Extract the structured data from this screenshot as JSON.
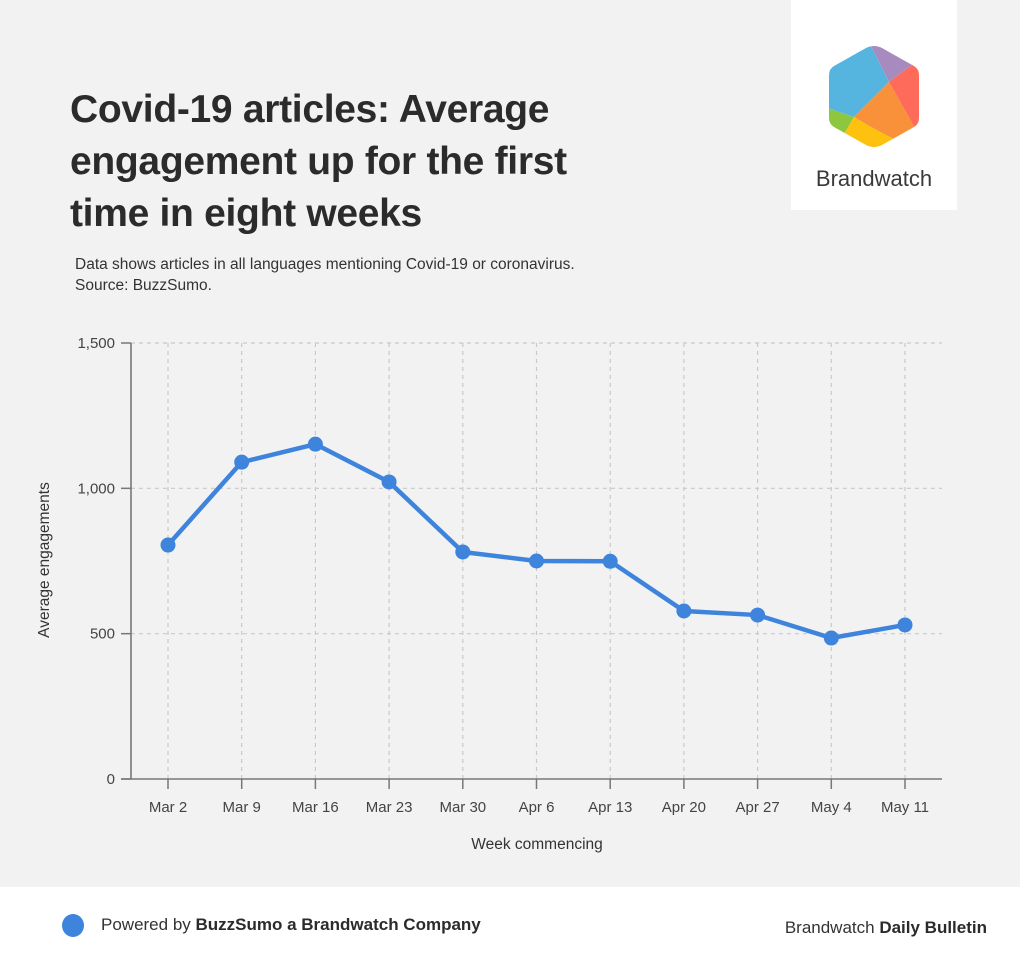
{
  "header": {
    "title": "Covid-19 articles: Average engagement up for the first time in eight weeks",
    "subtitle_line1": "Data shows articles in all languages mentioning Covid-19 or coronavirus.",
    "subtitle_line2": "Source: BuzzSumo."
  },
  "logo": {
    "name": "Brandwatch",
    "icon": "brandwatch-hexagon-logo",
    "colors": [
      "#55b5df",
      "#a78bbf",
      "#fe6b5a",
      "#f8913a",
      "#fec20e",
      "#8dc63f"
    ]
  },
  "footer": {
    "powered_prefix": "Powered by ",
    "powered_brand": "BuzzSumo a Brandwatch Company",
    "right_prefix": "Brandwatch ",
    "right_brand": "Daily Bulletin",
    "dot_color": "#3f84dc"
  },
  "chart_data": {
    "type": "line",
    "title": "Covid-19 articles: Average engagement up for the first time in eight weeks",
    "xlabel": "Week commencing",
    "ylabel": "Average engagements",
    "categories": [
      "Mar 2",
      "Mar 9",
      "Mar 16",
      "Mar 23",
      "Mar 30",
      "Apr 6",
      "Apr 13",
      "Apr 20",
      "Apr 27",
      "May 4",
      "May 11"
    ],
    "series": [
      {
        "name": "Average engagements",
        "color": "#3f84dc",
        "values": [
          805,
          1090,
          1152,
          1022,
          781,
          750,
          749,
          578,
          564,
          485,
          530
        ]
      }
    ],
    "ylim": [
      0,
      1500
    ],
    "yticks": [
      0,
      500,
      1000,
      1500
    ],
    "ytick_labels": [
      "0",
      "500",
      "1,000",
      "1,500"
    ],
    "grid": true,
    "legend": "none"
  }
}
